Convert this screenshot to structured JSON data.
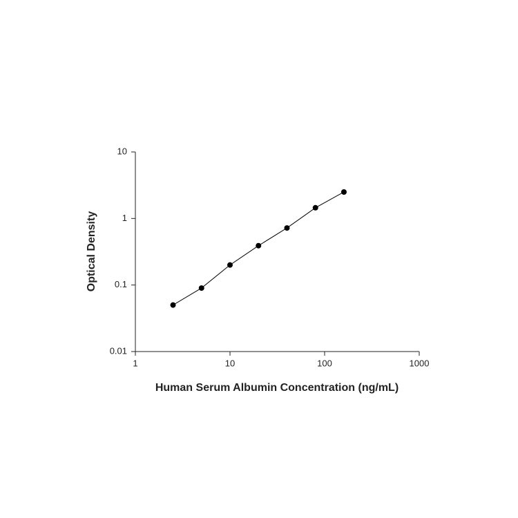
{
  "chart_data": {
    "type": "scatter",
    "x_label": "Human Serum Albumin Concentration (ng/mL)",
    "y_label": "Optical Density",
    "x": [
      2.5,
      5,
      10,
      20,
      40,
      80,
      160
    ],
    "series": [
      {
        "color": "#000000",
        "values": [
          0.05,
          0.09,
          0.2,
          0.39,
          0.72,
          1.45,
          2.5
        ]
      }
    ],
    "xlim": [
      1,
      1000
    ],
    "ylim": [
      0.01,
      10
    ],
    "xticks": [
      1,
      10,
      100,
      1000
    ],
    "yticks": [
      0.01,
      0.1,
      1,
      10
    ],
    "xscale": "log",
    "yscale": "log",
    "grid": false
  }
}
